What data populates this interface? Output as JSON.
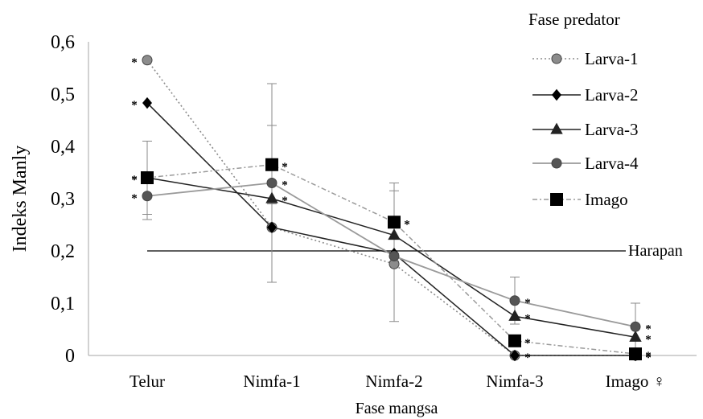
{
  "chart_data": {
    "type": "line",
    "title": "",
    "xlabel": "Fase mangsa",
    "ylabel": "Indeks Manly",
    "categories": [
      "Telur",
      "Nimfa-1",
      "Nimfa-2",
      "Nimfa-3",
      "Imago ♀"
    ],
    "ylim": [
      0,
      0.6
    ],
    "yticks": [
      "0",
      "0,1",
      "0,2",
      "0,3",
      "0,4",
      "0,5",
      "0,6"
    ],
    "grid": false,
    "legend": {
      "title": "Fase predator",
      "position": "top-right"
    },
    "reference_line": {
      "label": "Harapan",
      "value": 0.2
    },
    "significance_marker": "*",
    "series": [
      {
        "name": "Larva-1",
        "marker": "circle",
        "color": "#8c8c8c",
        "line": "dotted",
        "values": [
          0.565,
          0.245,
          0.175,
          0.0,
          0.0
        ],
        "errors": [
          0,
          0,
          0,
          0,
          0
        ],
        "significant": [
          true,
          false,
          false,
          true,
          true
        ]
      },
      {
        "name": "Larva-2",
        "marker": "diamond",
        "color": "#000000",
        "line": "solid",
        "values": [
          0.483,
          0.245,
          0.195,
          0.0,
          0.0
        ],
        "errors": [
          0,
          0,
          0,
          0,
          0
        ],
        "significant": [
          true,
          false,
          false,
          false,
          true
        ]
      },
      {
        "name": "Larva-3",
        "marker": "triangle",
        "color": "#222222",
        "line": "solid",
        "values": [
          0.34,
          0.3,
          0.23,
          0.075,
          0.035
        ],
        "errors": [
          0,
          0,
          0,
          0,
          0
        ],
        "significant": [
          true,
          true,
          false,
          true,
          true
        ]
      },
      {
        "name": "Larva-4",
        "marker": "circle",
        "color": "#555555",
        "line": "solid-gray",
        "values": [
          0.305,
          0.33,
          0.19,
          0.105,
          0.055
        ],
        "errors": [
          0.045,
          0.19,
          0.125,
          0.045,
          0.045
        ],
        "significant": [
          true,
          true,
          false,
          true,
          true
        ]
      },
      {
        "name": "Imago",
        "marker": "square",
        "color": "#000000",
        "line": "dashdot",
        "values": [
          0.34,
          0.365,
          0.255,
          0.028,
          0.003
        ],
        "errors": [
          0.07,
          0.075,
          0.075,
          0,
          0
        ],
        "significant": [
          true,
          true,
          true,
          true,
          true
        ]
      }
    ]
  }
}
